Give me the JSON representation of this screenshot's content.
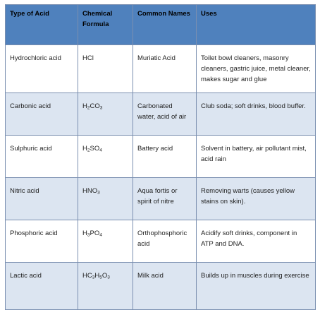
{
  "headers": [
    "Type of Acid",
    "Chemical Formula",
    "Common Names",
    "Uses"
  ],
  "rows": [
    {
      "acid": "Hydrochloric acid",
      "formula": [
        {
          "t": "HCl"
        }
      ],
      "names": "Muriatic Acid",
      "uses": "Toilet bowl cleaners, masonry cleaners, gastric juice, metal cleaner, makes sugar and glue"
    },
    {
      "acid": "Carbonic acid",
      "formula": [
        {
          "t": "H"
        },
        {
          "s": "2"
        },
        {
          "t": "CO"
        },
        {
          "s": "3"
        }
      ],
      "names": "Carbonated water, acid of air",
      "uses": "Club soda; soft drinks, blood buffer."
    },
    {
      "acid": "Sulphuric acid",
      "formula": [
        {
          "t": "H"
        },
        {
          "s": "2"
        },
        {
          "t": "SO"
        },
        {
          "s": "4"
        }
      ],
      "names": "Battery acid",
      "uses": "Solvent in battery, air pollutant mist, acid rain"
    },
    {
      "acid": "Nitric acid",
      "formula": [
        {
          "t": "HNO"
        },
        {
          "s": "3"
        }
      ],
      "names": "Aqua fortis or spirit of nitre",
      "uses": "Removing warts (causes yellow stains on skin)."
    },
    {
      "acid": "Phosphoric acid",
      "formula": [
        {
          "t": "H"
        },
        {
          "s": "3"
        },
        {
          "t": "PO"
        },
        {
          "s": "4"
        }
      ],
      "names": "Orthophosphoric acid",
      "uses": "Acidify soft drinks, component in ATP and DNA."
    },
    {
      "acid": "Lactic acid",
      "formula": [
        {
          "t": "HC"
        },
        {
          "s": "3"
        },
        {
          "t": "H"
        },
        {
          "s": "5"
        },
        {
          "t": "O"
        },
        {
          "s": "3"
        }
      ],
      "names": "Milk acid",
      "uses": "Builds up in muscles during exercise"
    }
  ]
}
